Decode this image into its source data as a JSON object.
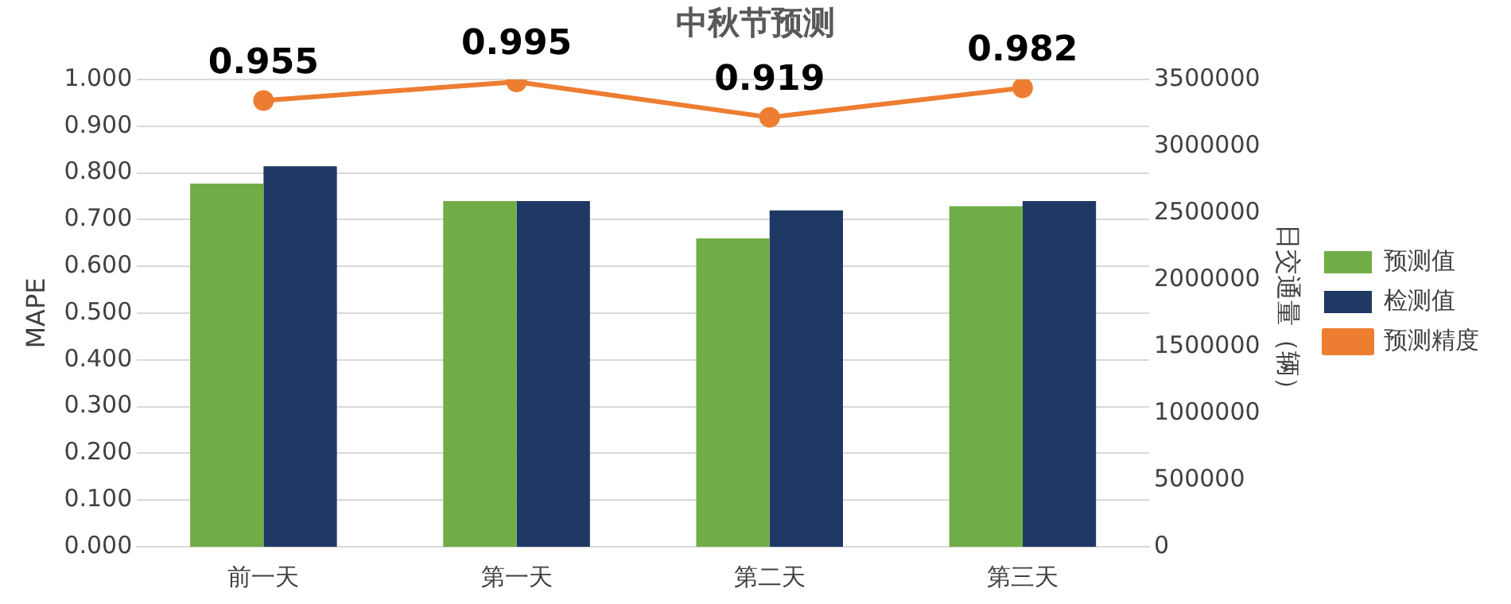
{
  "chart_data": {
    "type": "bar",
    "title": "中秋节预测",
    "ylabel": "MAPE",
    "y2label": "日交通量（辆）",
    "categories": [
      "前一天",
      "第一天",
      "第二天",
      "第三天"
    ],
    "series": [
      {
        "name": "预测值",
        "axis": "y2",
        "color": "#70ad47",
        "values": [
          2720000,
          2590000,
          2310000,
          2550000
        ]
      },
      {
        "name": "检测值",
        "axis": "y2",
        "color": "#203864",
        "values": [
          2850000,
          2590000,
          2520000,
          2590000
        ]
      },
      {
        "name": "预测精度",
        "type": "line",
        "axis": "y",
        "color": "#ed7d31",
        "marker": "circle",
        "values": [
          0.955,
          0.995,
          0.919,
          0.982
        ],
        "value_labels": [
          "0.955",
          "0.995",
          "0.919",
          "0.982"
        ]
      }
    ],
    "ylim": [
      0,
      1
    ],
    "yticks": [
      {
        "value": 0,
        "label": "0.000"
      },
      {
        "value": 0.1,
        "label": "0.100"
      },
      {
        "value": 0.2,
        "label": "0.200"
      },
      {
        "value": 0.3,
        "label": "0.300"
      },
      {
        "value": 0.4,
        "label": "0.400"
      },
      {
        "value": 0.5,
        "label": "0.500"
      },
      {
        "value": 0.6,
        "label": "0.600"
      },
      {
        "value": 0.7,
        "label": "0.700"
      },
      {
        "value": 0.8,
        "label": "0.800"
      },
      {
        "value": 0.9,
        "label": "0.900"
      },
      {
        "value": 1,
        "label": "1.000"
      }
    ],
    "y2lim": [
      0,
      3500000
    ],
    "y2ticks": [
      0,
      500000,
      1000000,
      1500000,
      2000000,
      2500000,
      3000000,
      3500000
    ],
    "grid": "y",
    "legend": "right"
  }
}
